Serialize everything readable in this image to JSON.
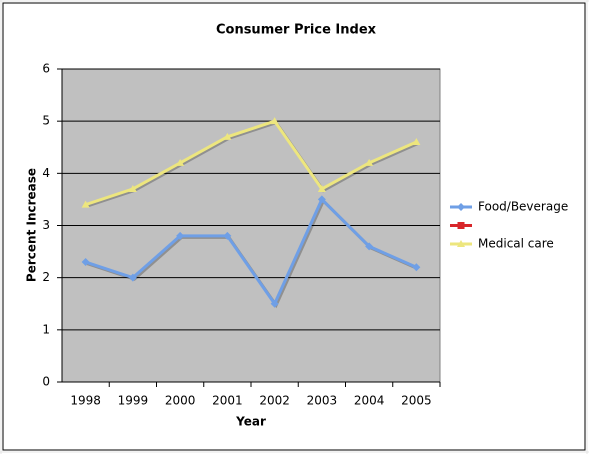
{
  "chart_data": {
    "type": "line",
    "title": "Consumer Price Index",
    "xlabel": "Year",
    "ylabel": "Percent Increase",
    "categories": [
      "1998",
      "1999",
      "2000",
      "2001",
      "2002",
      "2003",
      "2004",
      "2005"
    ],
    "series": [
      {
        "name": "Food/Beverage",
        "color": "#6f9fe6",
        "marker": "diamond",
        "values": [
          2.3,
          2.0,
          2.8,
          2.8,
          1.5,
          3.5,
          2.6,
          2.2
        ]
      },
      {
        "name": null,
        "color": "#d8262a",
        "marker": "square",
        "values": [
          null,
          null,
          null,
          null,
          null,
          null,
          null,
          null
        ]
      },
      {
        "name": "Medical care",
        "color": "#ede67e",
        "marker": "triangle",
        "values": [
          3.4,
          3.7,
          4.2,
          4.7,
          5.0,
          3.7,
          4.2,
          4.6
        ]
      }
    ],
    "ylim": [
      0,
      6
    ],
    "yticks": [
      0,
      1,
      2,
      3,
      4,
      5,
      6
    ],
    "grid": true,
    "legend": "right"
  }
}
